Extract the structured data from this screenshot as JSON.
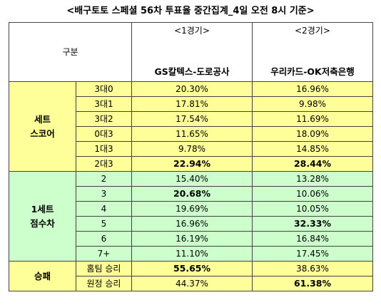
{
  "title": "<배구토토 스페셜 56차 투표율 중간집계_4일 오전 8시 기준>",
  "header": {
    "category_label": "구분",
    "games": [
      {
        "no": "<1경기>",
        "team": "GS칼텍스-도로공사"
      },
      {
        "no": "<2경기>",
        "team": "우리카드-OK저축은행"
      }
    ]
  },
  "groups": [
    {
      "label_line1": "세트",
      "label_line2": "스코어",
      "color": "#ffff99",
      "rows": [
        {
          "label": "3대0",
          "g1": "20.30%",
          "g2": "16.96%"
        },
        {
          "label": "3대1",
          "g1": "17.81%",
          "g2": "9.98%"
        },
        {
          "label": "3대2",
          "g1": "17.54%",
          "g2": "11.69%"
        },
        {
          "label": "0대3",
          "g1": "11.65%",
          "g2": "18.09%"
        },
        {
          "label": "1대3",
          "g1": "9.78%",
          "g2": "14.85%"
        },
        {
          "label": "2대3",
          "g1": "22.94%",
          "g2": "28.44%"
        }
      ]
    },
    {
      "label_line1": "1세트",
      "label_line2": "점수차",
      "color": "#ccffcc",
      "rows": [
        {
          "label": "2",
          "g1": "15.40%",
          "g2": "13.28%"
        },
        {
          "label": "3",
          "g1": "20.68%",
          "g2": "10.06%"
        },
        {
          "label": "4",
          "g1": "19.69%",
          "g2": "10.05%"
        },
        {
          "label": "5",
          "g1": "16.96%",
          "g2": "32.33%"
        },
        {
          "label": "6",
          "g1": "16.19%",
          "g2": "16.84%"
        },
        {
          "label": "7+",
          "g1": "11.10%",
          "g2": "17.45%"
        }
      ]
    },
    {
      "label_line1": "승패",
      "label_line2": "",
      "color": "#ffff99",
      "rows": [
        {
          "label": "홈팀 승리",
          "g1": "55.65%",
          "g2": "38.63%"
        },
        {
          "label": "원정 승리",
          "g1": "44.37%",
          "g2": "61.38%"
        }
      ]
    }
  ]
}
